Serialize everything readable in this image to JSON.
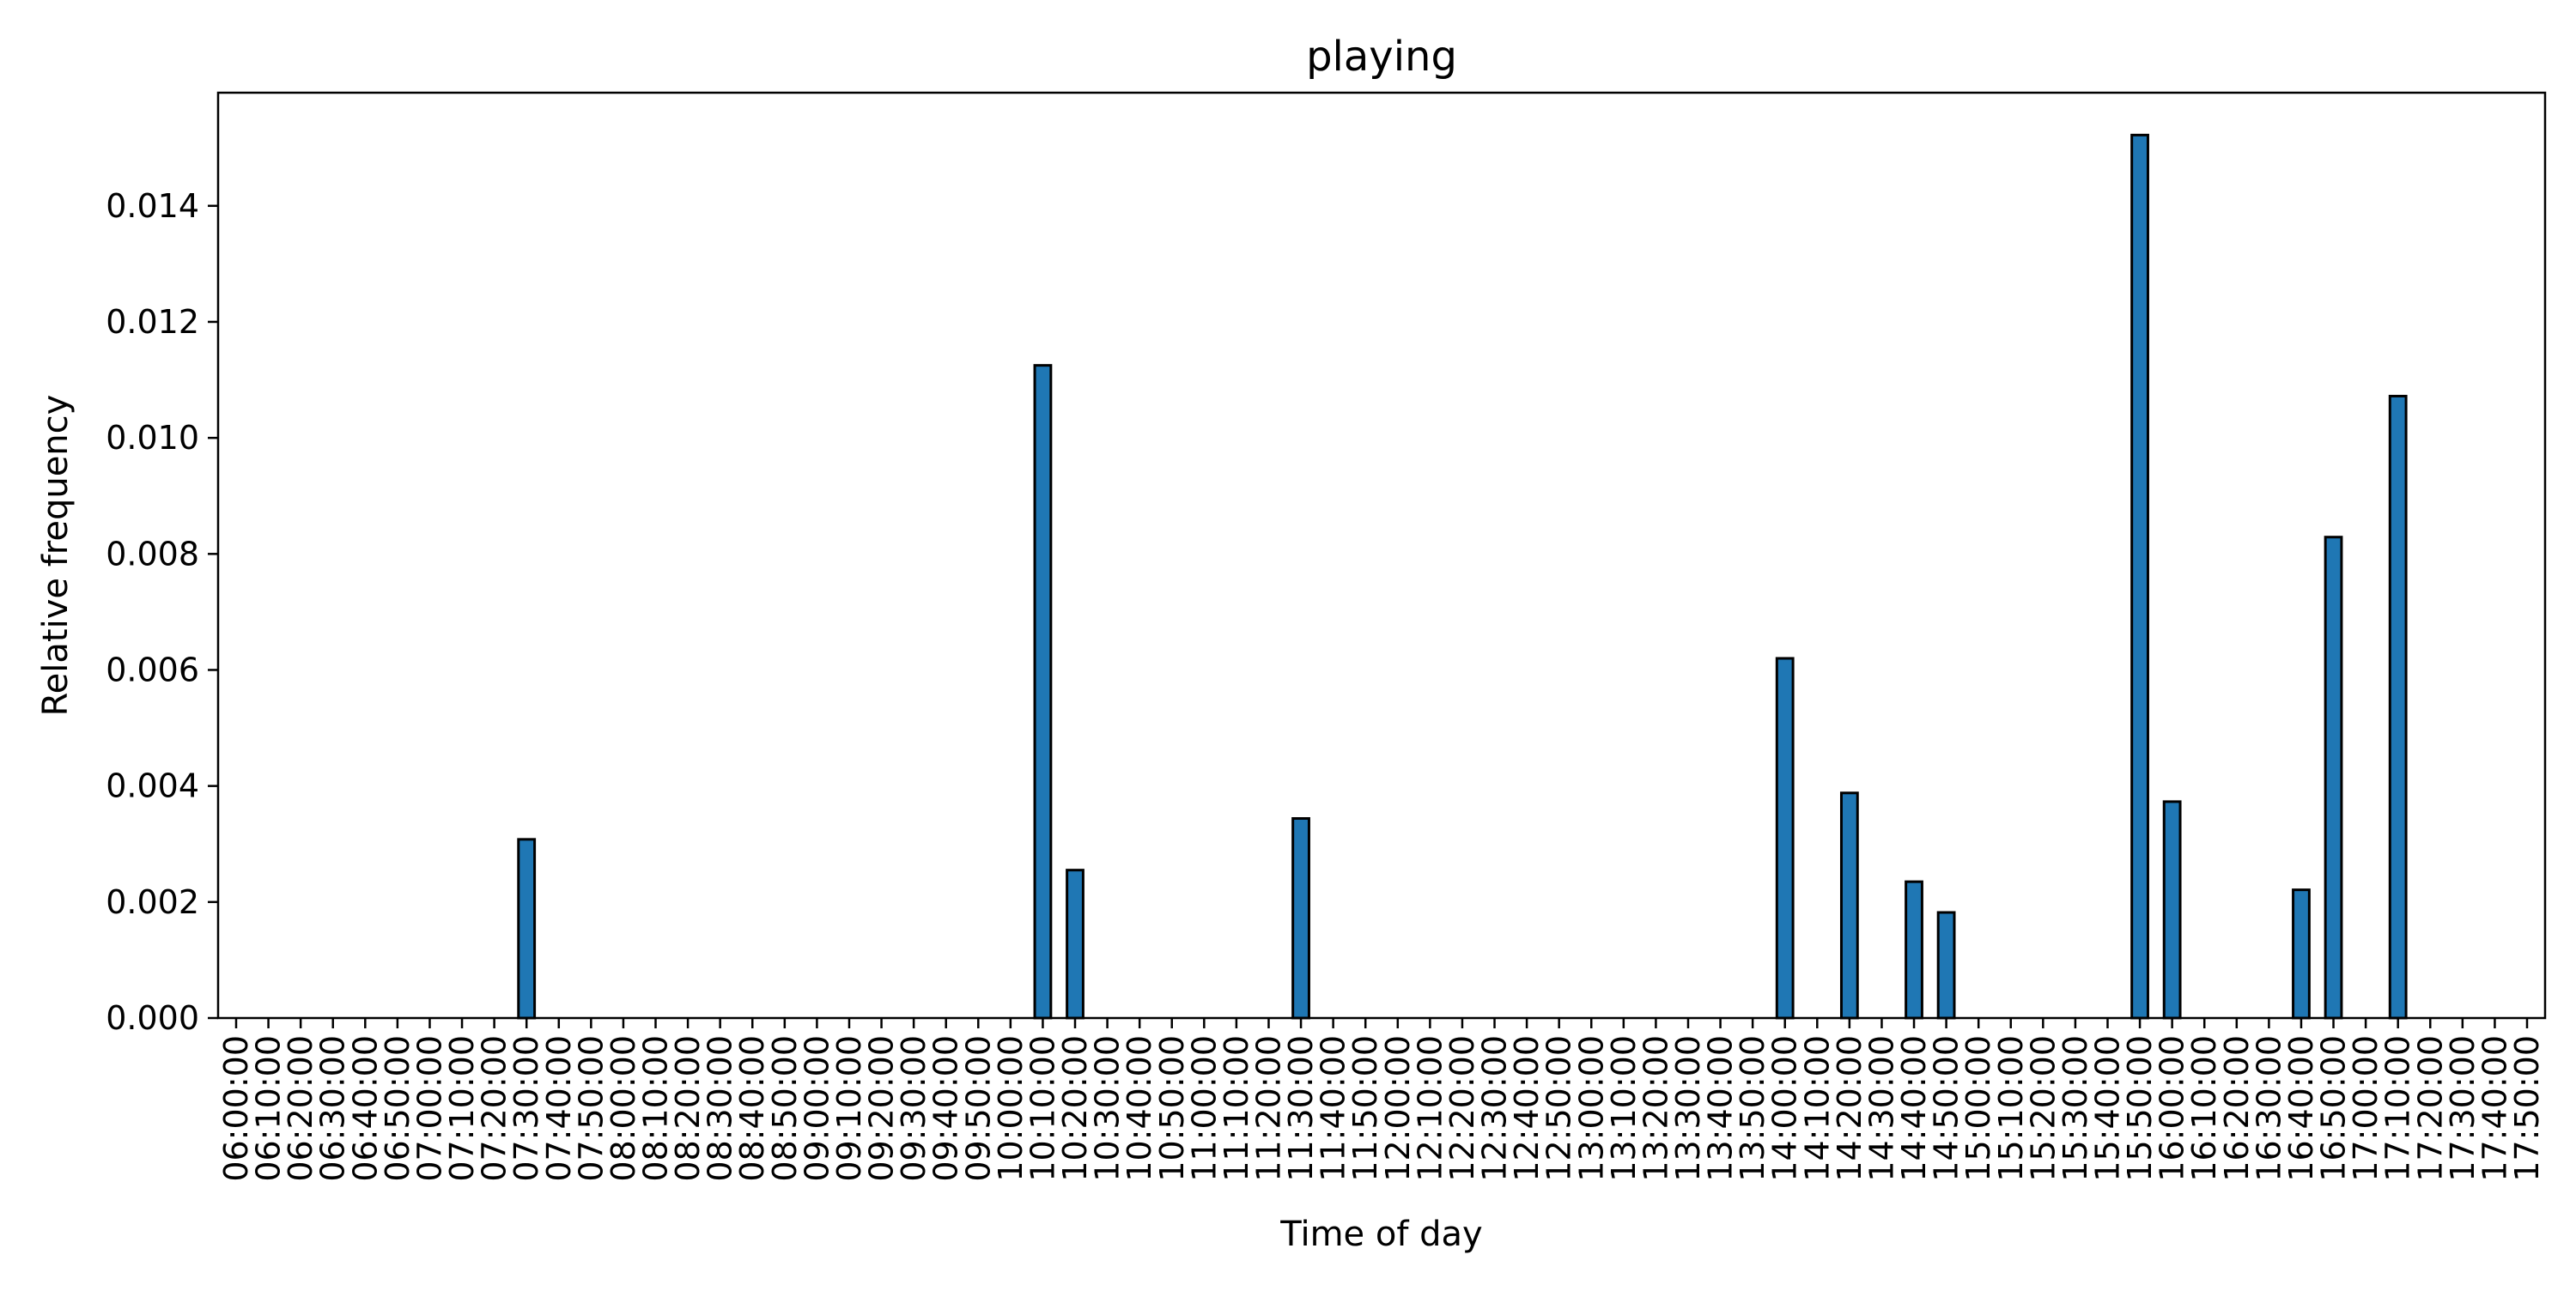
{
  "chart_data": {
    "type": "bar",
    "title": "playing",
    "xlabel": "Time of day",
    "ylabel": "Relative frequency",
    "ylim": [
      0,
      0.01595
    ],
    "yticks": [
      "0.000",
      "0.002",
      "0.004",
      "0.006",
      "0.008",
      "0.010",
      "0.012",
      "0.014"
    ],
    "grid": false,
    "legend": "none",
    "bar_color": "#1f77b4",
    "edge_color": "#000000",
    "categories": [
      "06:00:00",
      "06:10:00",
      "06:20:00",
      "06:30:00",
      "06:40:00",
      "06:50:00",
      "07:00:00",
      "07:10:00",
      "07:20:00",
      "07:30:00",
      "07:40:00",
      "07:50:00",
      "08:00:00",
      "08:10:00",
      "08:20:00",
      "08:30:00",
      "08:40:00",
      "08:50:00",
      "09:00:00",
      "09:10:00",
      "09:20:00",
      "09:30:00",
      "09:40:00",
      "09:50:00",
      "10:00:00",
      "10:10:00",
      "10:20:00",
      "10:30:00",
      "10:40:00",
      "10:50:00",
      "11:00:00",
      "11:10:00",
      "11:20:00",
      "11:30:00",
      "11:40:00",
      "11:50:00",
      "12:00:00",
      "12:10:00",
      "12:20:00",
      "12:30:00",
      "12:40:00",
      "12:50:00",
      "13:00:00",
      "13:10:00",
      "13:20:00",
      "13:30:00",
      "13:40:00",
      "13:50:00",
      "14:00:00",
      "14:10:00",
      "14:20:00",
      "14:30:00",
      "14:40:00",
      "14:50:00",
      "15:00:00",
      "15:10:00",
      "15:20:00",
      "15:30:00",
      "15:40:00",
      "15:50:00",
      "16:00:00",
      "16:10:00",
      "16:20:00",
      "16:30:00",
      "16:40:00",
      "16:50:00",
      "17:00:00",
      "17:10:00",
      "17:20:00",
      "17:30:00",
      "17:40:00",
      "17:50:00"
    ],
    "values": [
      0,
      0,
      0,
      0,
      0,
      0,
      0,
      0,
      0,
      0.00308,
      0,
      0,
      0,
      0,
      0,
      0,
      0,
      0,
      0,
      0,
      0,
      0,
      0,
      0,
      0,
      0.01125,
      0.00255,
      0,
      0,
      0,
      0,
      0,
      0,
      0.00344,
      0,
      0,
      0,
      0,
      0,
      0,
      0,
      0,
      0,
      0,
      0,
      0,
      0,
      0,
      0.0062,
      0,
      0.00388,
      0,
      0.00235,
      0.00182,
      0,
      0,
      0,
      0,
      0,
      0.01522,
      0.00373,
      0,
      0,
      0,
      0.00221,
      0.00829,
      0,
      0.01072,
      0,
      0,
      0,
      0
    ]
  }
}
